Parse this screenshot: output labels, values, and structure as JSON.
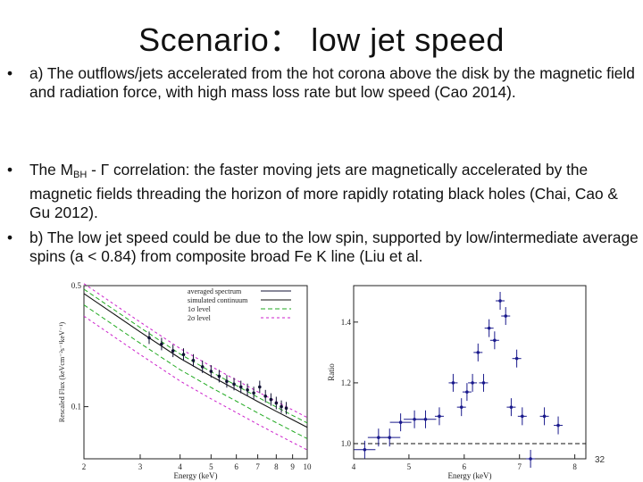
{
  "slide": {
    "title": "Scenario： low  jet  speed",
    "slide_number": "32"
  },
  "bullets": [
    {
      "dot": "•",
      "text": "a)  The outflows/jets accelerated from the hot corona above the disk by the magnetic field and radiation force, with high mass loss rate but low speed (Cao 2014)."
    },
    {
      "dot": "•",
      "pre": "The  M",
      "sub": "BH",
      "post": " - Γ  correlation:  the faster moving jets are magnetically  accelerated by the magnetic fields threading the horizon of more rapidly rotating black holes (Chai,  Cao  &  Gu 2012)."
    },
    {
      "dot": "•",
      "text": "b)  The low jet speed could be  due to the low spin,  supported by low/intermediate average spins (a < 0.84) from composite  broad Fe K line (Liu et al."
    }
  ],
  "chart_data": [
    {
      "type": "line",
      "xlabel": "Energy (keV)",
      "ylabel": "Rescaled Flux (keVcm⁻²s⁻¹keV⁻¹)",
      "xscale": "log",
      "yscale": "log",
      "xlim": [
        2,
        10
      ],
      "ylim": [
        0.05,
        0.5
      ],
      "x_tick_labels": [
        "2",
        "3",
        "4",
        "5",
        "6",
        "7",
        "8",
        "9",
        "10"
      ],
      "y_tick_labels": [
        "0.5",
        "0.1"
      ],
      "legend": [
        "averaged spectrum",
        "simulated continuum",
        "1σ level",
        "2σ level"
      ],
      "legend_position": "top-right",
      "series": [
        {
          "name": "simulated continuum",
          "x": [
            2,
            3,
            4,
            5,
            6,
            7,
            8,
            9,
            10
          ],
          "y": [
            0.45,
            0.27,
            0.19,
            0.15,
            0.125,
            0.107,
            0.094,
            0.084,
            0.076
          ]
        },
        {
          "name": "averaged spectrum",
          "x": [
            3.2,
            3.5,
            3.8,
            4.1,
            4.4,
            4.7,
            5.0,
            5.3,
            5.6,
            5.9,
            6.2,
            6.5,
            6.8,
            7.1,
            7.4,
            7.7,
            8.0,
            8.3,
            8.6
          ],
          "y": [
            0.25,
            0.23,
            0.21,
            0.2,
            0.185,
            0.17,
            0.16,
            0.15,
            0.14,
            0.135,
            0.13,
            0.125,
            0.12,
            0.13,
            0.115,
            0.11,
            0.105,
            0.1,
            0.098
          ]
        }
      ]
    },
    {
      "type": "scatter",
      "xlabel": "Energy (keV)",
      "ylabel": "Ratio",
      "xlim": [
        4,
        8.2
      ],
      "ylim": [
        0.95,
        1.52
      ],
      "x_tick_labels": [
        "4",
        "5",
        "6",
        "7",
        "8"
      ],
      "y_tick_labels": [
        "1.0",
        "1.2",
        "1.4"
      ],
      "reference_line": 1.0,
      "series": [
        {
          "name": "ratio",
          "x": [
            4.2,
            4.45,
            4.65,
            4.85,
            5.1,
            5.3,
            5.55,
            5.8,
            5.95,
            6.05,
            6.15,
            6.25,
            6.35,
            6.45,
            6.55,
            6.65,
            6.75,
            6.85,
            6.95,
            7.05,
            7.2,
            7.45,
            7.7
          ],
          "y": [
            0.98,
            1.02,
            1.02,
            1.07,
            1.08,
            1.08,
            1.09,
            1.2,
            1.12,
            1.17,
            1.2,
            1.3,
            1.2,
            1.38,
            1.34,
            1.47,
            1.42,
            1.12,
            1.28,
            1.09,
            0.95,
            1.09,
            1.06
          ]
        }
      ]
    }
  ]
}
